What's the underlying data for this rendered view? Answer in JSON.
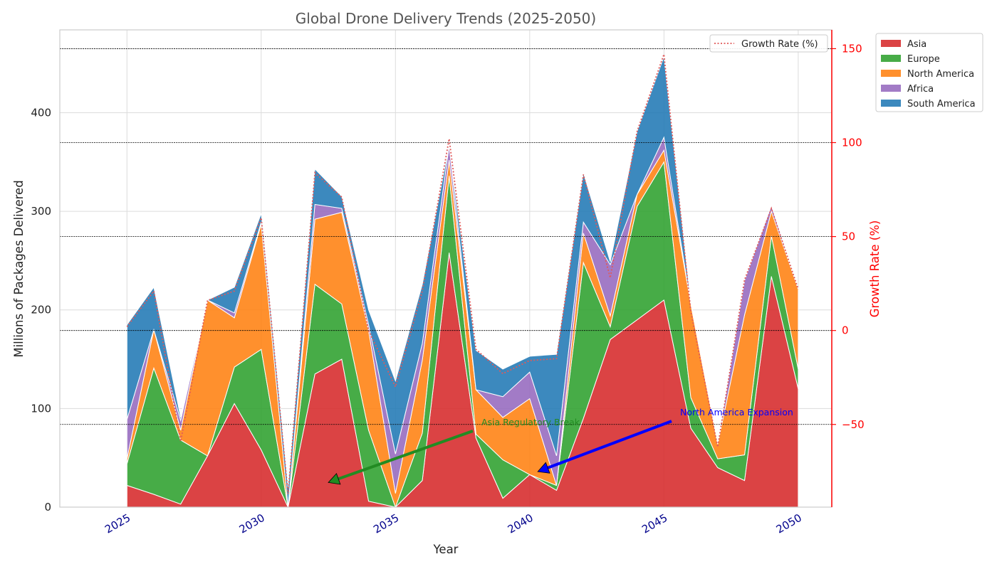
{
  "chart_data": {
    "type": "area",
    "title": "Global Drone Delivery Trends (2025-2050)",
    "xlabel": "Year",
    "ylabel": "Millions of Packages Delivered",
    "y2label": "Growth Rate (%)",
    "x": [
      2025,
      2026,
      2027,
      2028,
      2029,
      2030,
      2031,
      2032,
      2033,
      2034,
      2035,
      2036,
      2037,
      2038,
      2039,
      2040,
      2041,
      2042,
      2043,
      2044,
      2045,
      2046,
      2047,
      2048,
      2049,
      2050
    ],
    "x_ticks": [
      "2025",
      "2030",
      "2035",
      "2040",
      "2045",
      "2050"
    ],
    "xlim": [
      2022.5,
      2051.25
    ],
    "ylim": [
      0,
      484
    ],
    "y_ticks": [
      "0",
      "100",
      "200",
      "300",
      "400"
    ],
    "y2lim": [
      -94,
      160
    ],
    "y2_ticks": [
      "−50",
      "0",
      "50",
      "100",
      "150"
    ],
    "grid": true,
    "stacked": true,
    "series": [
      {
        "name": "Asia",
        "color": "#d62728",
        "values": [
          22,
          13,
          3,
          52,
          105,
          58,
          0,
          135,
          150,
          6,
          0,
          27,
          258,
          70,
          9,
          33,
          17,
          90,
          170,
          190,
          210,
          80,
          40,
          27,
          234,
          120
        ]
      },
      {
        "name": "Europe",
        "color": "#2ca02c",
        "values": [
          22,
          128,
          65,
          0,
          37,
          102,
          0,
          91,
          56,
          72,
          0,
          48,
          78,
          4,
          39,
          0,
          5,
          158,
          13,
          115,
          140,
          31,
          9,
          26,
          41,
          20
        ]
      },
      {
        "name": "North America",
        "color": "#ff7f0e",
        "values": [
          5,
          39,
          10,
          158,
          50,
          127,
          0,
          66,
          93,
          101,
          14,
          74,
          16,
          45,
          43,
          77,
          0,
          30,
          11,
          12,
          12,
          95,
          15,
          142,
          25,
          81
        ]
      },
      {
        "name": "Africa",
        "color": "#9467bd",
        "values": [
          40,
          0,
          10,
          0,
          5,
          2,
          0,
          15,
          4,
          6,
          40,
          17,
          15,
          0,
          21,
          27,
          30,
          11,
          52,
          0,
          13,
          0,
          0,
          35,
          6,
          0
        ]
      },
      {
        "name": "South America",
        "color": "#1f77b4",
        "values": [
          96,
          43,
          3,
          0,
          26,
          9,
          20,
          36,
          12,
          15,
          74,
          60,
          0,
          40,
          28,
          16,
          103,
          50,
          3,
          64,
          82,
          0,
          0,
          0,
          0,
          0
        ]
      }
    ],
    "growth_rate": {
      "name": "Growth Rate (%)",
      "color": "#e05a5a",
      "values": [
        2,
        21,
        -59,
        16,
        21,
        60,
        -87,
        84,
        71,
        0,
        -30,
        21,
        102,
        -10,
        -23,
        -16,
        -15,
        83,
        28,
        106,
        147,
        10,
        -62,
        27,
        65,
        22
      ]
    },
    "hlines_growth": [
      150,
      100,
      50,
      0,
      -50
    ],
    "legend_position": "upper right (outside)",
    "growth_legend_position": "upper right",
    "annotations": [
      {
        "text": "North America Expansion",
        "color": "#0000ff",
        "x_text": 2045.6,
        "y_text": 93,
        "x_arrow": 2040.3,
        "y_arrow": 36
      },
      {
        "text": "Asia Regulatory Break",
        "color": "#228b22",
        "x_text": 2038.2,
        "y_text": 83,
        "x_arrow": 2032.5,
        "y_arrow": 25
      }
    ]
  }
}
